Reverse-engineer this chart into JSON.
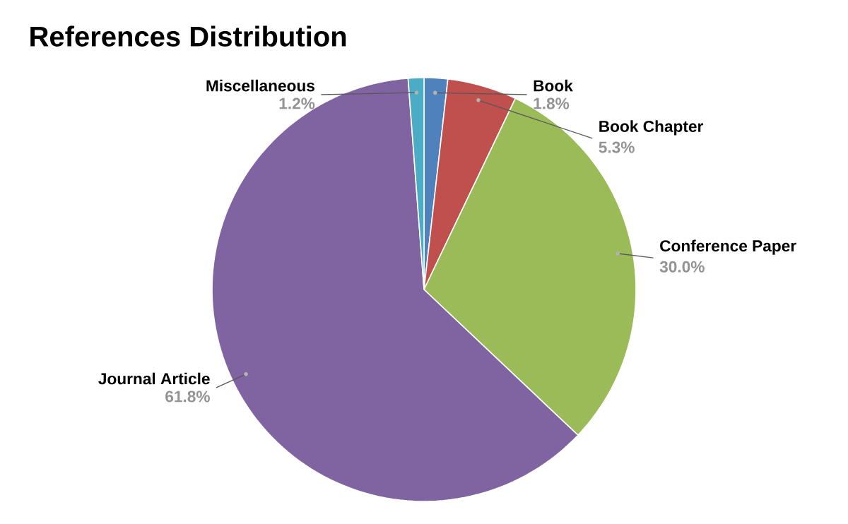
{
  "chart_data": {
    "type": "pie",
    "title": "References Distribution",
    "categories": [
      "Book",
      "Book Chapter",
      "Conference Paper",
      "Journal Article",
      "Miscellaneous"
    ],
    "values": [
      1.8,
      5.3,
      30.0,
      61.8,
      1.2
    ],
    "value_labels": [
      "1.8%",
      "5.3%",
      "30.0%",
      "61.8%",
      "1.2%"
    ],
    "colors": [
      "#4f81bd",
      "#c0504d",
      "#9bbb59",
      "#8064a2",
      "#4bacc6"
    ]
  }
}
